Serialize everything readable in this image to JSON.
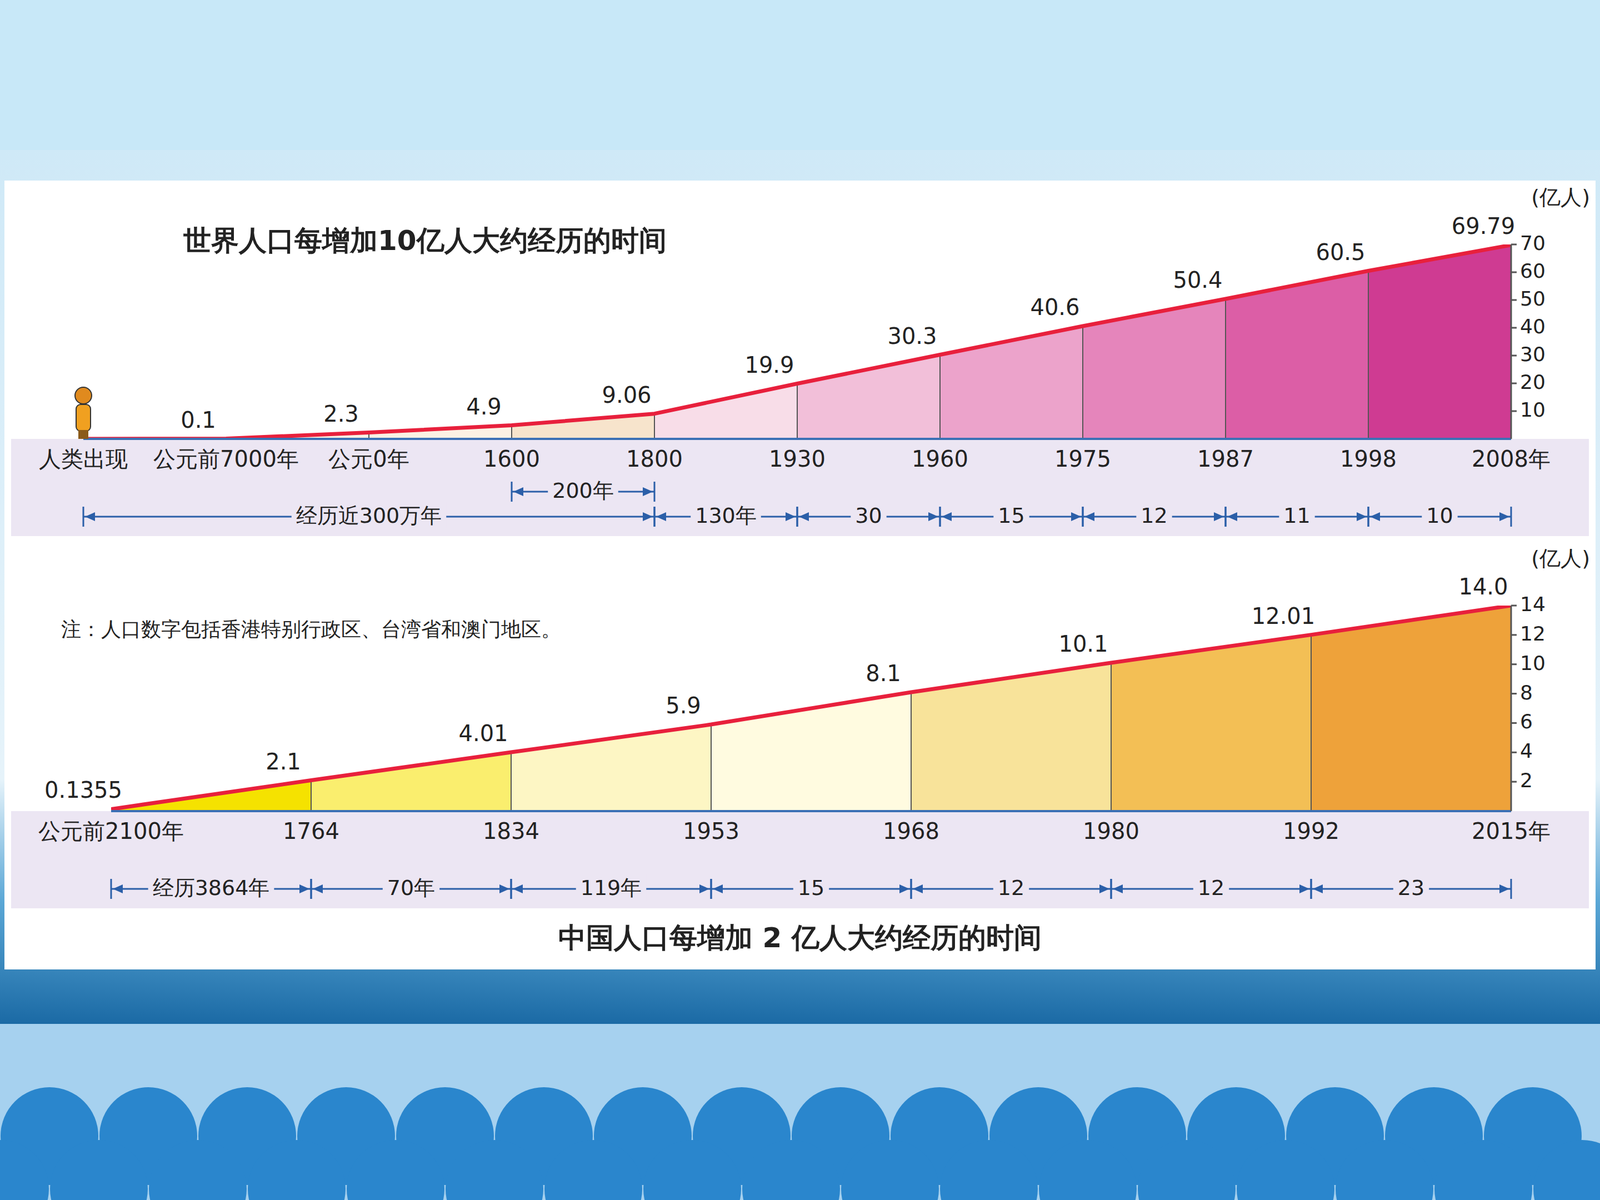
{
  "chart_data": [
    {
      "type": "area",
      "title": "世界人口每增加10亿人大约经历的时间",
      "categories": [
        "人类出现",
        "公元前7000年",
        "公元0年",
        "1600",
        "1800",
        "1930",
        "1960",
        "1975",
        "1987",
        "1998",
        "2008年"
      ],
      "values": [
        0,
        0.1,
        2.3,
        4.9,
        9.06,
        19.9,
        30.3,
        40.6,
        50.4,
        60.5,
        69.79
      ],
      "value_labels": [
        null,
        "0.1",
        "2.3",
        "4.9",
        "9.06",
        "19.9",
        "30.3",
        "40.6",
        "50.4",
        "60.5",
        "69.79"
      ],
      "data_labels": true,
      "color": "#e8203c",
      "colors": [
        "#fbf1e4",
        "#fbf1e4",
        "#fbf1e4",
        "#f7e4cc",
        "#f8dde8",
        "#f2bfd9",
        "#eca3cb",
        "#e585bb",
        "#dc5ea6",
        "#cf3b92"
      ],
      "ylim": [
        0,
        70
      ],
      "yticks": [
        10,
        20,
        30,
        40,
        50,
        60,
        70
      ],
      "ylabel": "(亿人)",
      "annotations": [
        {
          "text": "经历近300万年",
          "from": "人类出现",
          "to": "1800"
        },
        {
          "text": "200年",
          "from": "1600",
          "to": "1800"
        },
        {
          "text": "130年",
          "from": "1800",
          "to": "1930"
        },
        {
          "text": "30",
          "from": "1930",
          "to": "1960"
        },
        {
          "text": "15",
          "from": "1960",
          "to": "1975"
        },
        {
          "text": "12",
          "from": "1975",
          "to": "1987"
        },
        {
          "text": "11",
          "from": "1987",
          "to": "1998"
        },
        {
          "text": "10",
          "from": "1998",
          "to": "2008年"
        }
      ]
    },
    {
      "type": "area",
      "title": "中国人口每增加 2 亿人大约经历的时间",
      "note": "注：人口数字包括香港特别行政区、台湾省和澳门地区。",
      "categories": [
        "公元前2100年",
        "1764",
        "1834",
        "1953",
        "1968",
        "1980",
        "1992",
        "2015年"
      ],
      "values": [
        0.1355,
        2.1,
        4.01,
        5.9,
        8.1,
        10.1,
        12.01,
        14.0
      ],
      "value_labels": [
        "0.1355",
        "2.1",
        "4.01",
        "5.9",
        "8.1",
        "10.1",
        "12.01",
        "14.0"
      ],
      "data_labels": true,
      "color": "#e8203c",
      "colors": [
        "#f5e200",
        "#faee6e",
        "#fdf6c4",
        "#fffbe0",
        "#f8e39a",
        "#f3bf55",
        "#eea23a"
      ],
      "ylim": [
        0,
        14
      ],
      "yticks": [
        2,
        4,
        6,
        8,
        10,
        12,
        14
      ],
      "ylabel": "(亿人)",
      "annotations": [
        {
          "text": "经历3864年",
          "from": "公元前2100年",
          "to": "1764"
        },
        {
          "text": "70年",
          "from": "1764",
          "to": "1834"
        },
        {
          "text": "119年",
          "from": "1834",
          "to": "1953"
        },
        {
          "text": "15",
          "from": "1953",
          "to": "1968"
        },
        {
          "text": "12",
          "from": "1968",
          "to": "1980"
        },
        {
          "text": "12",
          "from": "1980",
          "to": "1992"
        },
        {
          "text": "23",
          "from": "1992",
          "to": "2015年"
        }
      ]
    }
  ]
}
